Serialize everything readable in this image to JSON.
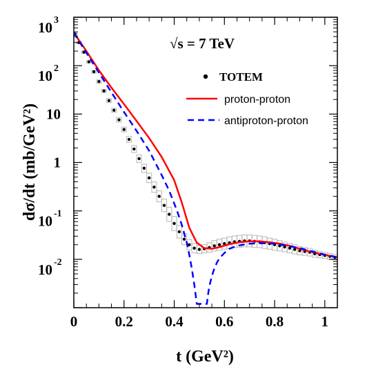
{
  "chart_data": {
    "type": "line",
    "annotation": "√s = 7 TeV",
    "xlabel": "t (GeV²)",
    "ylabel": "dσ/dt (mb/GeV²)",
    "xlim": [
      0,
      1.05
    ],
    "ylim_log10": [
      -3,
      3
    ],
    "y_scale": "log",
    "x_ticks": [
      "0",
      "0.2",
      "0.4",
      "0.6",
      "0.8",
      "1"
    ],
    "x_tick_values": [
      0,
      0.2,
      0.4,
      0.6,
      0.8,
      1.0
    ],
    "y_ticks": [
      {
        "base": "10",
        "exp": "-2",
        "value": 0.01
      },
      {
        "base": "10",
        "exp": "-1",
        "value": 0.1
      },
      {
        "base": "1",
        "exp": "",
        "value": 1
      },
      {
        "base": "10",
        "exp": "",
        "value": 10
      },
      {
        "base": "10",
        "exp": "2",
        "value": 100
      },
      {
        "base": "10",
        "exp": "3",
        "value": 1000
      }
    ],
    "legend": {
      "position": "top-right",
      "entries": [
        {
          "label": "TOTEM",
          "style": "dots"
        },
        {
          "label": "proton-proton",
          "style": "solid",
          "color": "#ff0000"
        },
        {
          "label": "antiproton-proton",
          "style": "dashed",
          "color": "#0000ff"
        }
      ]
    },
    "series": [
      {
        "name": "TOTEM",
        "style": "dots",
        "color": "#000000",
        "error_color": "#bbbbbb",
        "x": [
          0.005,
          0.02,
          0.04,
          0.06,
          0.08,
          0.1,
          0.12,
          0.14,
          0.16,
          0.18,
          0.2,
          0.22,
          0.24,
          0.26,
          0.28,
          0.3,
          0.32,
          0.34,
          0.36,
          0.38,
          0.4,
          0.42,
          0.44,
          0.46,
          0.48,
          0.5,
          0.52,
          0.54,
          0.56,
          0.58,
          0.6,
          0.62,
          0.64,
          0.66,
          0.68,
          0.7,
          0.72,
          0.74,
          0.76,
          0.78,
          0.8,
          0.82,
          0.84,
          0.86,
          0.88,
          0.9,
          0.92,
          0.94,
          0.96,
          0.98,
          1.0,
          1.02,
          1.04
        ],
        "y": [
          450,
          300,
          190,
          120,
          75,
          47,
          30,
          19,
          12,
          7.6,
          4.8,
          3.0,
          1.9,
          1.2,
          0.76,
          0.48,
          0.31,
          0.2,
          0.13,
          0.085,
          0.055,
          0.037,
          0.026,
          0.02,
          0.017,
          0.016,
          0.0165,
          0.0175,
          0.019,
          0.02,
          0.021,
          0.022,
          0.023,
          0.0235,
          0.024,
          0.024,
          0.0235,
          0.023,
          0.022,
          0.021,
          0.02,
          0.019,
          0.018,
          0.017,
          0.016,
          0.015,
          0.0145,
          0.014,
          0.013,
          0.0125,
          0.012,
          0.0115,
          0.011
        ],
        "err_factor": [
          1.05,
          1.05,
          1.06,
          1.06,
          1.07,
          1.08,
          1.08,
          1.1,
          1.1,
          1.12,
          1.12,
          1.15,
          1.18,
          1.2,
          1.22,
          1.25,
          1.28,
          1.3,
          1.35,
          1.4,
          1.4,
          1.35,
          1.3,
          1.28,
          1.25,
          1.22,
          1.22,
          1.25,
          1.28,
          1.3,
          1.3,
          1.32,
          1.32,
          1.33,
          1.33,
          1.33,
          1.33,
          1.32,
          1.32,
          1.3,
          1.3,
          1.28,
          1.26,
          1.25,
          1.24,
          1.22,
          1.2,
          1.2,
          1.18,
          1.16,
          1.15,
          1.15,
          1.14
        ]
      },
      {
        "name": "proton-proton",
        "style": "solid",
        "color": "#ff0000",
        "x": [
          0,
          0.05,
          0.1,
          0.15,
          0.2,
          0.25,
          0.3,
          0.35,
          0.4,
          0.43,
          0.46,
          0.49,
          0.52,
          0.55,
          0.58,
          0.62,
          0.66,
          0.7,
          0.74,
          0.78,
          0.82,
          0.86,
          0.9,
          0.94,
          0.98,
          1.02,
          1.05
        ],
        "y": [
          480,
          200,
          80,
          35,
          16,
          7.2,
          3.2,
          1.3,
          0.43,
          0.15,
          0.045,
          0.022,
          0.017,
          0.0165,
          0.0178,
          0.0205,
          0.0225,
          0.0235,
          0.0235,
          0.0225,
          0.021,
          0.019,
          0.0165,
          0.0145,
          0.013,
          0.0118,
          0.011
        ]
      },
      {
        "name": "antiproton-proton",
        "style": "dashed",
        "color": "#0000ff",
        "x": [
          0,
          0.05,
          0.1,
          0.15,
          0.2,
          0.25,
          0.3,
          0.35,
          0.38,
          0.41,
          0.43,
          0.45,
          0.46,
          0.47,
          0.48,
          0.485,
          0.49,
          0.53,
          0.535,
          0.54,
          0.55,
          0.56,
          0.57,
          0.58,
          0.6,
          0.62,
          0.65,
          0.7,
          0.75,
          0.8,
          0.85,
          0.9,
          0.95,
          1.0,
          1.05
        ],
        "y": [
          480,
          185,
          72,
          28,
          11,
          4.5,
          1.75,
          0.55,
          0.26,
          0.105,
          0.052,
          0.022,
          0.0125,
          0.0065,
          0.003,
          0.0019,
          0.0012,
          0.0012,
          0.0019,
          0.0028,
          0.0045,
          0.0065,
          0.0085,
          0.0105,
          0.0135,
          0.0165,
          0.019,
          0.021,
          0.0215,
          0.021,
          0.019,
          0.017,
          0.0145,
          0.0125,
          0.011
        ]
      }
    ]
  }
}
